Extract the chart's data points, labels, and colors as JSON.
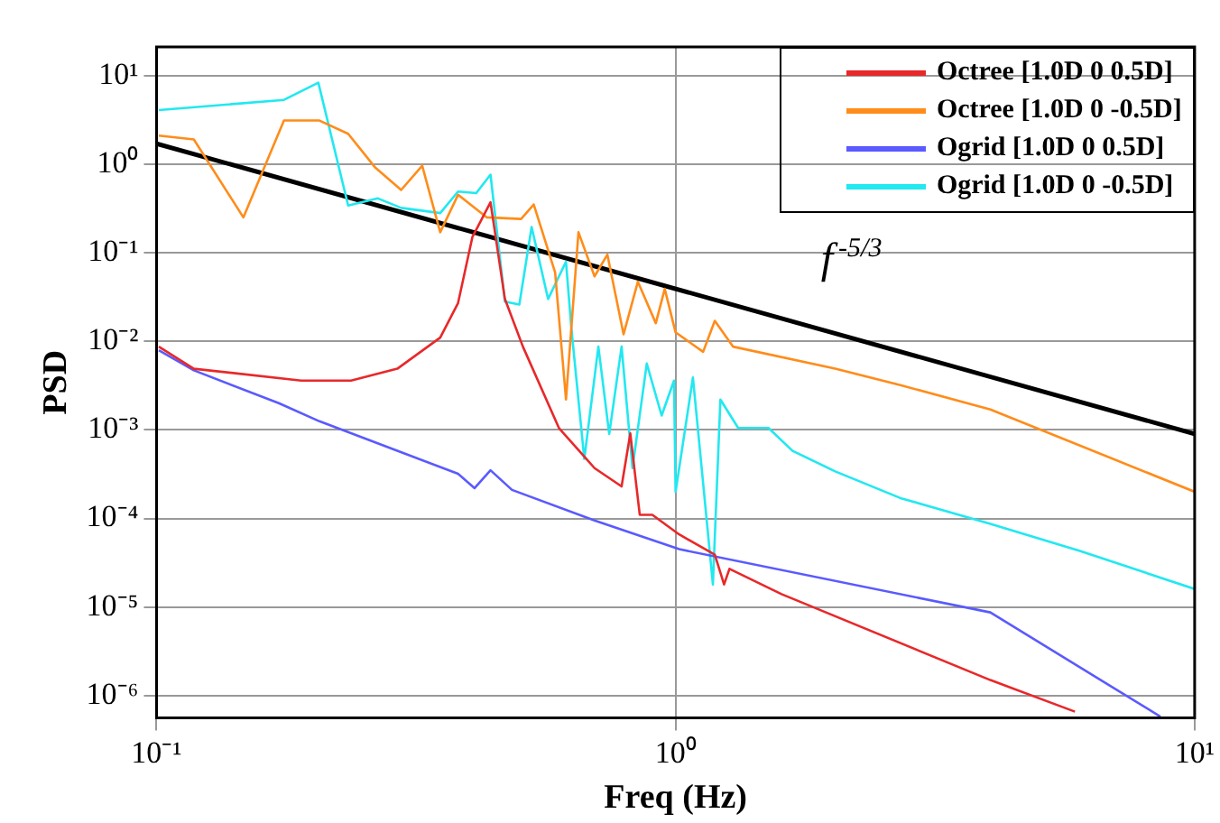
{
  "chart_data": {
    "type": "line",
    "xlabel": "Freq (Hz)",
    "ylabel": "PSD",
    "log": "xy",
    "grid": true,
    "legend": "top right",
    "marker": "none",
    "line_style": "solid",
    "xlim": [
      0.1,
      10
    ],
    "ylim": [
      5.6e-07,
      21
    ],
    "xticks": [
      {
        "value": 0.1,
        "label": "10⁻¹"
      },
      {
        "value": 1,
        "label": "10⁰"
      },
      {
        "value": 10,
        "label": "10¹"
      }
    ],
    "yticks": [
      {
        "value": 1e-06,
        "label": "10⁻⁶"
      },
      {
        "value": 1e-05,
        "label": "10⁻⁵"
      },
      {
        "value": 0.0001,
        "label": "10⁻⁴"
      },
      {
        "value": 0.001,
        "label": "10⁻³"
      },
      {
        "value": 0.01,
        "label": "10⁻²"
      },
      {
        "value": 0.1,
        "label": "10⁻¹"
      },
      {
        "value": 1,
        "label": "10⁰"
      },
      {
        "value": 10,
        "label": "10¹"
      }
    ],
    "annotations": [
      "f$^{-5/3}$"
    ],
    "series": [
      {
        "name": "Octree [1.0D 0 0.5D]",
        "color": "#e8282a",
        "x": [
          0.101,
          0.118,
          0.19,
          0.237,
          0.291,
          0.352,
          0.381,
          0.406,
          0.44,
          0.469,
          0.508,
          0.596,
          0.698,
          0.787,
          0.818,
          0.853,
          0.902,
          1.016,
          1.19,
          1.24,
          1.27,
          1.6,
          4.04,
          5.88
        ],
        "values": [
          0.0087,
          0.0049,
          0.0036,
          0.0036,
          0.0049,
          0.011,
          0.027,
          0.15,
          0.37,
          0.03,
          0.0087,
          0.00105,
          0.00037,
          0.00023,
          0.00091,
          0.00011,
          0.00011,
          6.6e-05,
          3.9e-05,
          1.8e-05,
          2.7e-05,
          1.4e-05,
          1.5e-06,
          6.6e-07
        ]
      },
      {
        "name": "Octree [1.0D 0 -0.5D]",
        "color": "#ff8c1a",
        "x": [
          0.101,
          0.118,
          0.147,
          0.176,
          0.206,
          0.234,
          0.264,
          0.296,
          0.325,
          0.352,
          0.381,
          0.433,
          0.504,
          0.533,
          0.586,
          0.615,
          0.65,
          0.698,
          0.739,
          0.794,
          0.846,
          0.916,
          0.953,
          1.0,
          1.13,
          1.19,
          1.29,
          2.03,
          2.71,
          4.04,
          10
        ],
        "values": [
          2.1,
          1.9,
          0.25,
          3.1,
          3.1,
          2.2,
          0.91,
          0.51,
          0.96,
          0.17,
          0.45,
          0.25,
          0.24,
          0.35,
          0.06,
          0.0022,
          0.17,
          0.054,
          0.095,
          0.012,
          0.047,
          0.016,
          0.039,
          0.0126,
          0.0076,
          0.017,
          0.0087,
          0.0049,
          0.0032,
          0.0017,
          0.0002
        ]
      },
      {
        "name": "Ogrid [1.0D 0 0.5D]",
        "color": "#5a5aff",
        "x": [
          0.101,
          0.118,
          0.172,
          0.206,
          0.291,
          0.381,
          0.41,
          0.44,
          0.484,
          0.698,
          1.016,
          4.04,
          8.59
        ],
        "values": [
          0.0079,
          0.0047,
          0.002,
          0.00125,
          0.00058,
          0.00032,
          0.00022,
          0.00035,
          0.00021,
          9.5e-05,
          4.5e-05,
          8.7e-06,
          5.8e-07
        ]
      },
      {
        "name": "Ogrid [1.0D 0 -0.5D]",
        "color": "#22e8f0",
        "x": [
          0.101,
          0.176,
          0.205,
          0.234,
          0.267,
          0.296,
          0.352,
          0.381,
          0.413,
          0.44,
          0.469,
          0.5,
          0.528,
          0.568,
          0.615,
          0.63,
          0.667,
          0.71,
          0.745,
          0.787,
          0.826,
          0.88,
          0.94,
          0.993,
          1.0,
          1.08,
          1.18,
          1.22,
          1.32,
          1.51,
          1.68,
          2.03,
          2.71,
          4.04,
          6.01,
          10
        ],
        "values": [
          4.06,
          5.3,
          8.3,
          0.34,
          0.41,
          0.32,
          0.28,
          0.49,
          0.47,
          0.76,
          0.028,
          0.026,
          0.195,
          0.03,
          0.079,
          0.0138,
          0.00047,
          0.0087,
          0.0009,
          0.0087,
          0.00037,
          0.0056,
          0.00145,
          0.0036,
          0.0002,
          0.0039,
          1.8e-05,
          0.0022,
          0.00105,
          0.00105,
          0.00058,
          0.00034,
          0.00017,
          8.7e-05,
          4.3e-05,
          1.6e-05
        ]
      },
      {
        "color": "#000000",
        "x": [
          0.1,
          10
        ],
        "values": [
          1.7,
          0.0009
        ]
      }
    ]
  }
}
